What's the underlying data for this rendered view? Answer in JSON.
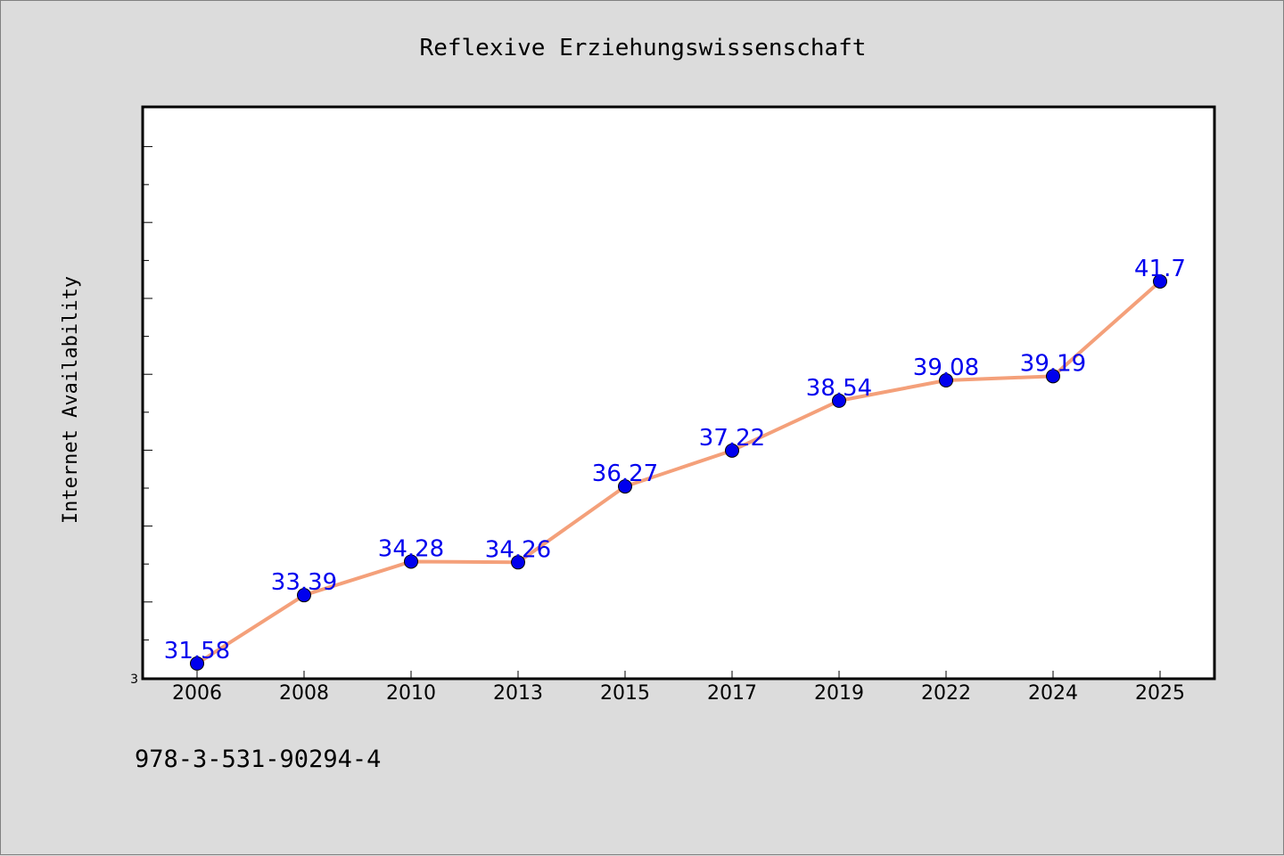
{
  "chart_data": {
    "type": "line",
    "title": "Reflexive Erziehungswissenschaft",
    "xlabel": "",
    "ylabel": "Internet Availability",
    "categories": [
      "2006",
      "2008",
      "2010",
      "2013",
      "2015",
      "2017",
      "2019",
      "2022",
      "2024",
      "2025"
    ],
    "series": [
      {
        "values": [
          31.58,
          33.39,
          34.28,
          34.26,
          36.27,
          37.22,
          38.54,
          39.08,
          39.19,
          41.7
        ],
        "data_labels": [
          "31.58",
          "33.39",
          "34.28",
          "34.26",
          "36.27",
          "37.22",
          "38.54",
          "39.08",
          "39.19",
          "41.7"
        ],
        "line_color": "#f4a07a",
        "marker_color": "#0000ee"
      }
    ],
    "y_tick_labels": [
      "3"
    ],
    "ylim": [
      31.2,
      46.3
    ],
    "grid": false,
    "legend": "none",
    "label_color": "#0000ee"
  },
  "footer": {
    "isbn": "978-3-531-90294-4"
  }
}
